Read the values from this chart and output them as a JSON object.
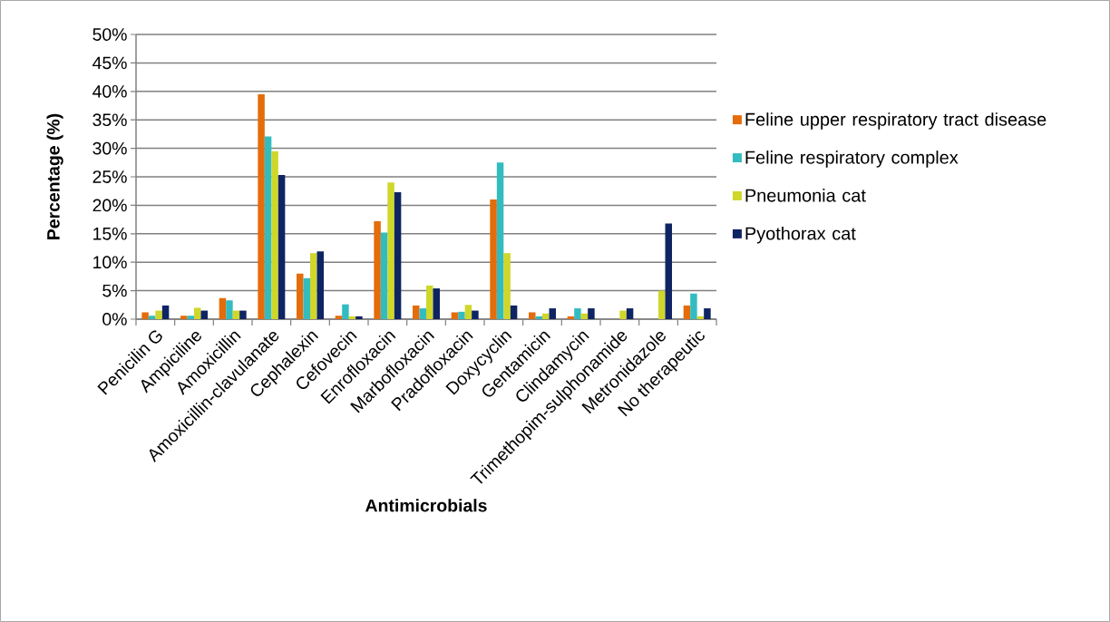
{
  "chart_data": {
    "type": "bar",
    "ylabel": "Percentage (%)",
    "xlabel": "Antimicrobials",
    "categories": [
      "Penicilin G",
      "Ampiciline",
      "Amoxicillin",
      "Amoxicillin-clavulanate",
      "Cephalexin",
      "Cefovecin",
      "Enrofloxacin",
      "Marbofloxacin",
      "Pradofloxacin",
      "Doxycyclin",
      "Gentamicin",
      "Clindamycin",
      "Trimethopim-sulphonamide",
      "Metronidazole",
      "No therapeutic"
    ],
    "series": [
      {
        "name": "Feline upper respiratory tract disease",
        "color": "#e46c0a",
        "values": [
          1.2,
          0.6,
          3.7,
          39.5,
          8.0,
          0.6,
          17.2,
          2.4,
          1.2,
          21.0,
          1.2,
          0.5,
          0,
          0,
          2.4
        ]
      },
      {
        "name": "Feline respiratory complex",
        "color": "#33bcc0",
        "values": [
          0.6,
          0.6,
          3.3,
          32.1,
          7.2,
          2.6,
          15.2,
          1.9,
          1.3,
          27.5,
          0.5,
          1.9,
          0,
          0,
          4.5
        ]
      },
      {
        "name": "Pneumonia cat",
        "color": "#cfd72a",
        "values": [
          1.5,
          2.0,
          1.5,
          29.5,
          11.6,
          0.5,
          24.0,
          5.9,
          2.5,
          11.6,
          1.0,
          1.0,
          1.5,
          5.0,
          0.5
        ]
      },
      {
        "name": "Pyothorax cat",
        "color": "#0f2462",
        "values": [
          2.4,
          1.5,
          1.5,
          25.3,
          11.9,
          0.5,
          22.3,
          5.4,
          1.5,
          2.4,
          1.9,
          1.9,
          1.9,
          16.8,
          1.9
        ]
      }
    ],
    "ylim": [
      0,
      50
    ],
    "yticks": [
      {
        "value": 0,
        "label": "0%"
      },
      {
        "value": 5,
        "label": "5%"
      },
      {
        "value": 10,
        "label": "10%"
      },
      {
        "value": 15,
        "label": "15%"
      },
      {
        "value": 20,
        "label": "20%"
      },
      {
        "value": 25,
        "label": "25%"
      },
      {
        "value": 30,
        "label": "30%"
      },
      {
        "value": 35,
        "label": "35%"
      },
      {
        "value": 40,
        "label": "40%"
      },
      {
        "value": 45,
        "label": "45%"
      },
      {
        "value": 50,
        "label": "50%"
      }
    ],
    "grid": "y",
    "legend": "right"
  }
}
